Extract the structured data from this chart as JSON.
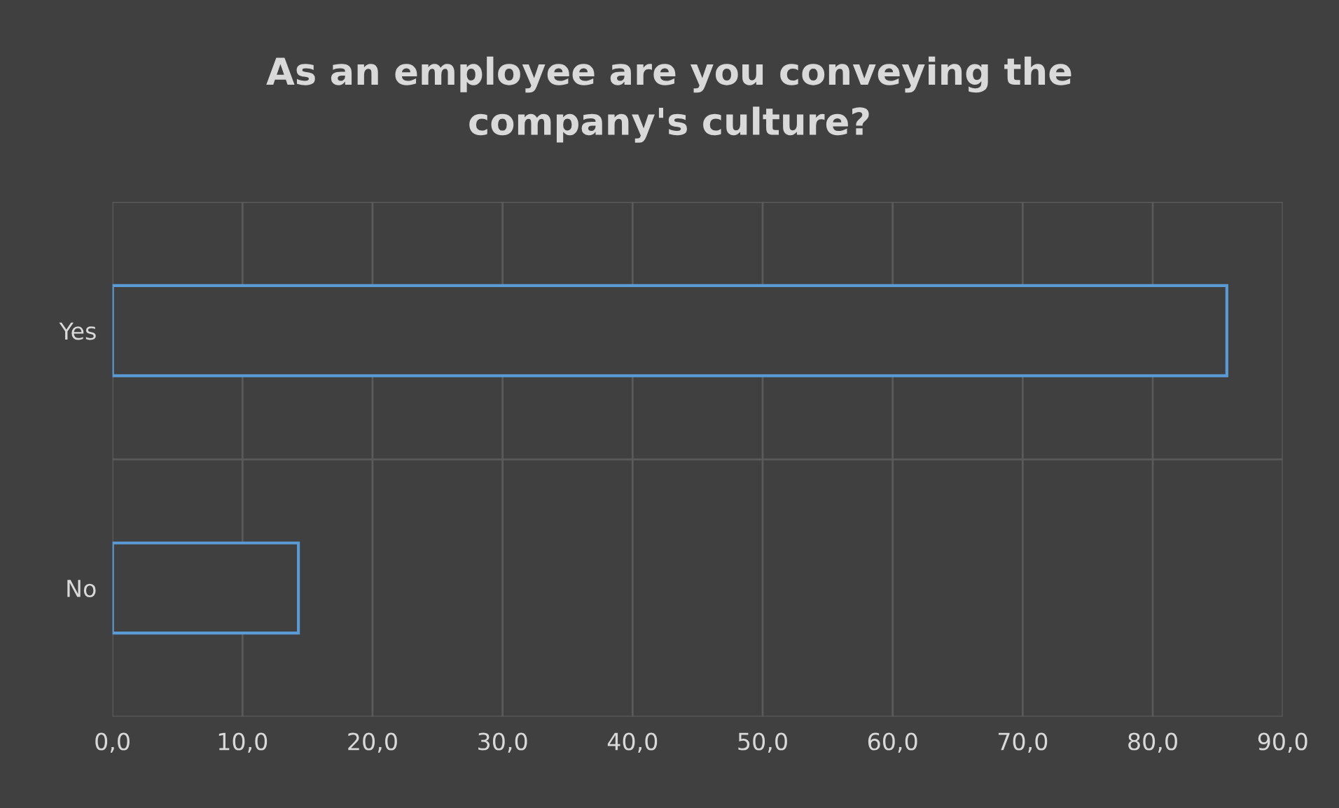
{
  "chart_data": {
    "type": "bar",
    "orientation": "horizontal",
    "title": "As an employee are you conveying the\ncompany's culture?",
    "categories": [
      "Yes",
      "No"
    ],
    "values": [
      85.7,
      14.3
    ],
    "color": "#5b9bd5",
    "xlim": [
      0,
      90
    ],
    "xticks": [
      {
        "value": 0,
        "label": "0,0"
      },
      {
        "value": 10,
        "label": "10,0"
      },
      {
        "value": 20,
        "label": "20,0"
      },
      {
        "value": 30,
        "label": "30,0"
      },
      {
        "value": 40,
        "label": "40,0"
      },
      {
        "value": 50,
        "label": "50,0"
      },
      {
        "value": 60,
        "label": "60,0"
      },
      {
        "value": 70,
        "label": "70,0"
      },
      {
        "value": 80,
        "label": "80,0"
      },
      {
        "value": 90,
        "label": "90,0"
      }
    ],
    "grid": true
  }
}
